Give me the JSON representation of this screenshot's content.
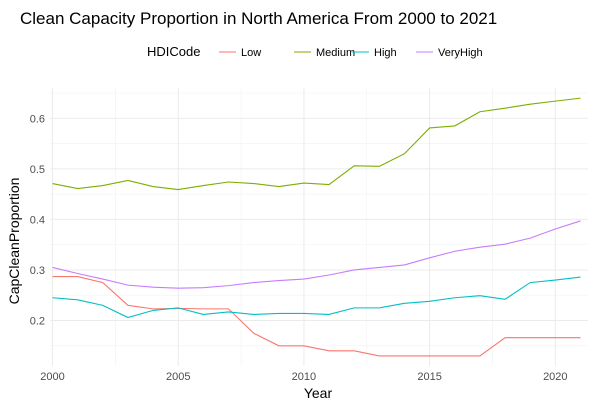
{
  "chart_data": {
    "type": "line",
    "title": "Clean Capacity Proportion in North America From 2000 to 2021",
    "xlabel": "Year",
    "ylabel": "CapCleanProportion",
    "legend_title": "HDICode",
    "legend_position": "top",
    "grid": true,
    "xlim": [
      1999.9,
      2021.3
    ],
    "ylim": [
      0.11,
      0.66
    ],
    "x_ticks": [
      2000,
      2005,
      2010,
      2015,
      2020
    ],
    "y_ticks": [
      0.2,
      0.3,
      0.4,
      0.5,
      0.6
    ],
    "x_tick_labels": [
      "2000",
      "2005",
      "2010",
      "2015",
      "2020"
    ],
    "y_tick_labels": [
      "0.2",
      "0.3",
      "0.4",
      "0.5",
      "0.6"
    ],
    "x": [
      2000,
      2001,
      2002,
      2003,
      2004,
      2005,
      2006,
      2007,
      2008,
      2009,
      2010,
      2011,
      2012,
      2013,
      2014,
      2015,
      2016,
      2017,
      2018,
      2019,
      2020,
      2021
    ],
    "series": [
      {
        "name": "Low",
        "color": "#F8766D",
        "values": [
          0.287,
          0.287,
          0.275,
          0.23,
          0.223,
          0.224,
          0.223,
          0.223,
          0.175,
          0.15,
          0.15,
          0.14,
          0.14,
          0.13,
          0.13,
          0.13,
          0.13,
          0.13,
          0.166,
          0.166,
          0.166,
          0.166
        ]
      },
      {
        "name": "Medium",
        "color": "#7CAE00",
        "values": [
          0.471,
          0.461,
          0.467,
          0.477,
          0.465,
          0.459,
          0.467,
          0.474,
          0.471,
          0.465,
          0.472,
          0.469,
          0.506,
          0.505,
          0.53,
          0.581,
          0.585,
          0.613,
          0.62,
          0.628,
          0.634,
          0.64
        ]
      },
      {
        "name": "High",
        "color": "#00BFC4",
        "values": [
          0.245,
          0.241,
          0.23,
          0.206,
          0.22,
          0.225,
          0.212,
          0.217,
          0.212,
          0.214,
          0.214,
          0.212,
          0.225,
          0.225,
          0.234,
          0.238,
          0.245,
          0.249,
          0.242,
          0.275,
          0.28,
          0.286
        ]
      },
      {
        "name": "VeryHigh",
        "color": "#C77CFF",
        "values": [
          0.305,
          0.293,
          0.282,
          0.27,
          0.266,
          0.264,
          0.265,
          0.269,
          0.275,
          0.279,
          0.282,
          0.29,
          0.3,
          0.305,
          0.31,
          0.324,
          0.337,
          0.345,
          0.351,
          0.363,
          0.381,
          0.397
        ]
      }
    ]
  }
}
